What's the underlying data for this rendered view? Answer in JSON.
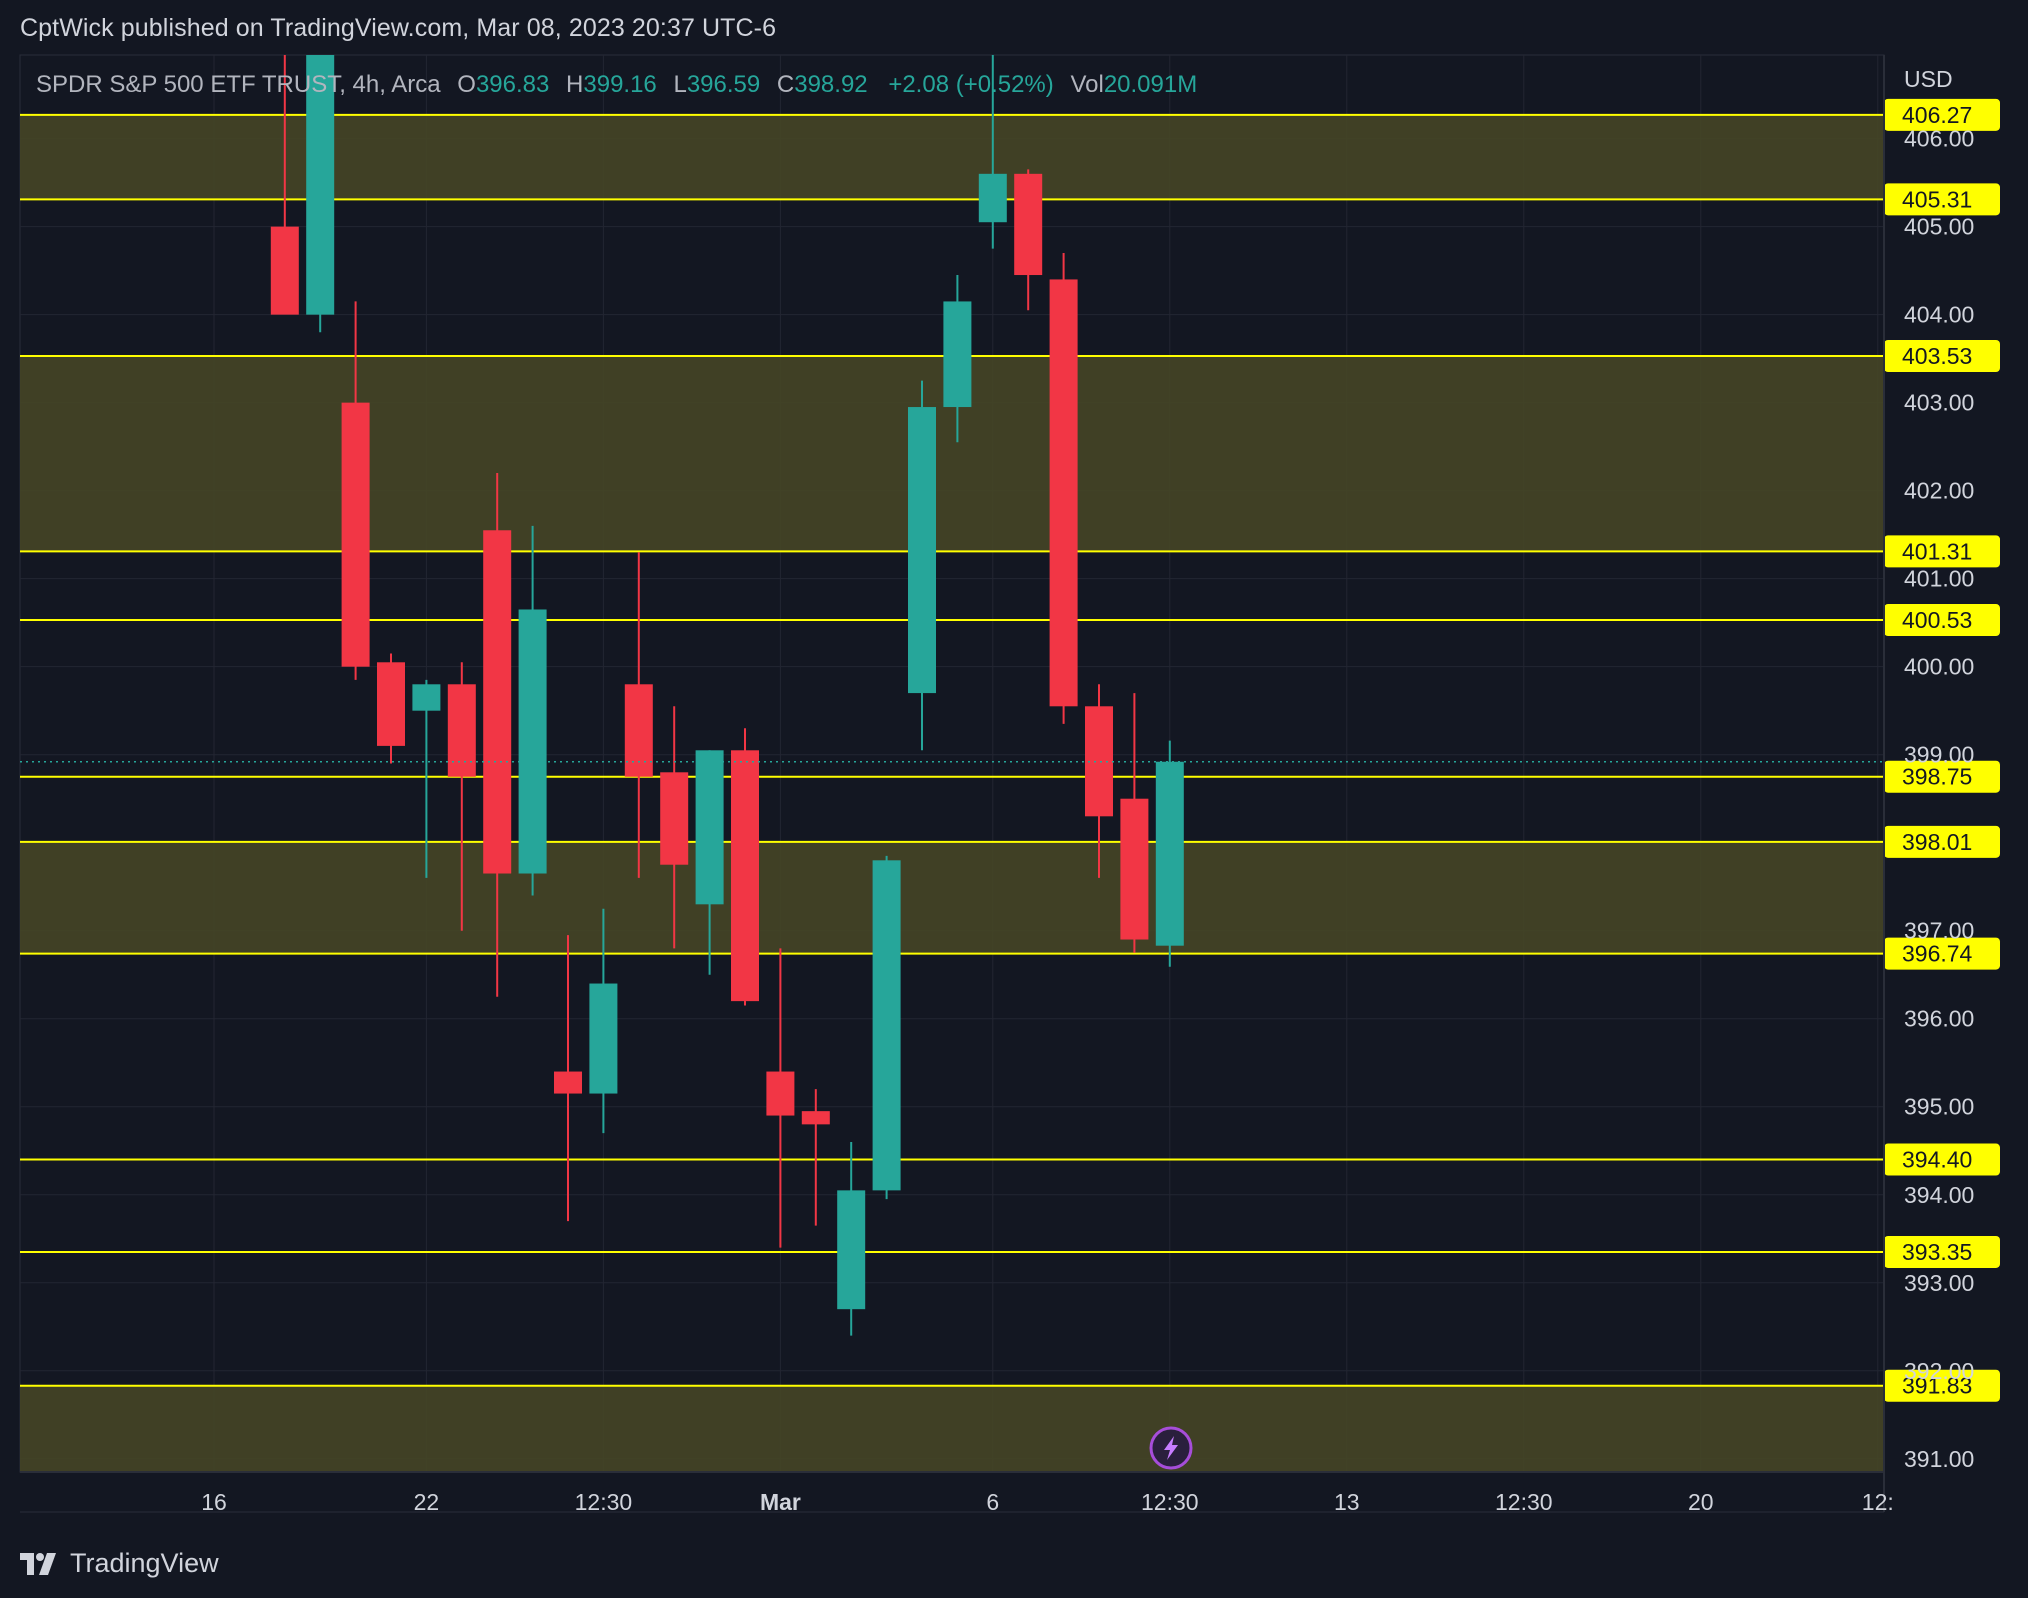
{
  "header": {
    "publisher": "CptWick published on TradingView.com, Mar 08, 2023 20:37 UTC-6"
  },
  "legend": {
    "symbol": "SPDR S&P 500 ETF TRUST, 4h, Arca",
    "open_label": "O",
    "open": "396.83",
    "high_label": "H",
    "high": "399.16",
    "low_label": "L",
    "low": "396.59",
    "close_label": "C",
    "close": "398.92",
    "change": "+2.08 (+0.52%)",
    "vol_label": "Vol",
    "vol": "20.091M"
  },
  "axis": {
    "currency": "USD"
  },
  "footer": {
    "brand": "TradingView"
  },
  "colors": {
    "up": "#26a69a",
    "down": "#f23645",
    "level": "#ffff00",
    "zone": "#444426",
    "bg": "#131722",
    "grid": "#232632",
    "text": "#d1d4dc"
  },
  "icons": {
    "brand_logo": "tradingview-logo-icon",
    "flash_marker": "lightning-icon"
  },
  "chart_data": {
    "type": "candlestick",
    "ylim": [
      390.85,
      406.95
    ],
    "y_ticks": [
      "391.00",
      "392.00",
      "393.00",
      "394.00",
      "395.00",
      "396.00",
      "397.00",
      "399.00",
      "400.00",
      "401.00",
      "402.00",
      "403.00",
      "404.00",
      "405.00",
      "406.00"
    ],
    "x_ticks": [
      {
        "label": "16",
        "bar": 0
      },
      {
        "label": "22",
        "bar": 6
      },
      {
        "label": "12:30",
        "bar": 11
      },
      {
        "label": "Mar",
        "bar": 16
      },
      {
        "label": "6",
        "bar": 22
      },
      {
        "label": "12:30",
        "bar": 27
      },
      {
        "label": "13",
        "bar": 32
      },
      {
        "label": "12:30",
        "bar": 37
      },
      {
        "label": "20",
        "bar": 42
      },
      {
        "label": "12:",
        "bar": 47
      }
    ],
    "bar_index_start": 2,
    "candles": [
      {
        "o": 405.0,
        "h": 406.95,
        "l": 404.05,
        "c": 404.0
      },
      {
        "o": 404.0,
        "h": 406.95,
        "l": 403.8,
        "c": 406.95
      },
      {
        "o": 403.0,
        "h": 404.15,
        "l": 399.85,
        "c": 400.0
      },
      {
        "o": 400.05,
        "h": 400.15,
        "l": 398.9,
        "c": 399.1
      },
      {
        "o": 399.5,
        "h": 399.85,
        "l": 397.6,
        "c": 399.8
      },
      {
        "o": 399.8,
        "h": 400.05,
        "l": 397.0,
        "c": 398.75
      },
      {
        "o": 401.55,
        "h": 402.2,
        "l": 396.25,
        "c": 397.65
      },
      {
        "o": 397.65,
        "h": 401.6,
        "l": 397.4,
        "c": 400.65
      },
      {
        "o": 395.4,
        "h": 396.95,
        "l": 393.7,
        "c": 395.15
      },
      {
        "o": 395.15,
        "h": 397.25,
        "l": 394.7,
        "c": 396.4
      },
      {
        "o": 399.8,
        "h": 401.3,
        "l": 397.6,
        "c": 398.75
      },
      {
        "o": 398.8,
        "h": 399.55,
        "l": 396.8,
        "c": 397.75
      },
      {
        "o": 397.3,
        "h": 399.05,
        "l": 396.5,
        "c": 399.05
      },
      {
        "o": 399.05,
        "h": 399.3,
        "l": 396.15,
        "c": 396.2
      },
      {
        "o": 395.4,
        "h": 396.8,
        "l": 393.4,
        "c": 394.9
      },
      {
        "o": 394.95,
        "h": 395.2,
        "l": 393.65,
        "c": 394.8
      },
      {
        "o": 392.7,
        "h": 394.6,
        "l": 392.4,
        "c": 394.05
      },
      {
        "o": 394.05,
        "h": 397.85,
        "l": 393.95,
        "c": 397.8
      },
      {
        "o": 399.7,
        "h": 403.25,
        "l": 399.05,
        "c": 402.95
      },
      {
        "o": 402.95,
        "h": 404.45,
        "l": 402.55,
        "c": 404.15
      },
      {
        "o": 405.05,
        "h": 406.95,
        "l": 404.75,
        "c": 405.6
      },
      {
        "o": 405.6,
        "h": 405.65,
        "l": 404.05,
        "c": 404.45
      },
      {
        "o": 404.4,
        "h": 404.7,
        "l": 399.35,
        "c": 399.55
      },
      {
        "o": 399.55,
        "h": 399.8,
        "l": 397.6,
        "c": 398.3
      },
      {
        "o": 398.5,
        "h": 399.7,
        "l": 396.75,
        "c": 396.9
      },
      {
        "o": 396.83,
        "h": 399.16,
        "l": 396.59,
        "c": 398.92
      }
    ],
    "last_price": 398.92,
    "levels": [
      "406.27",
      "405.31",
      "403.53",
      "401.31",
      "400.53",
      "398.75",
      "398.01",
      "396.74",
      "394.40",
      "393.35",
      "391.83"
    ],
    "zones": [
      [
        405.31,
        406.27
      ],
      [
        401.31,
        403.53
      ],
      [
        396.74,
        398.01
      ],
      [
        390.85,
        391.83
      ]
    ]
  }
}
